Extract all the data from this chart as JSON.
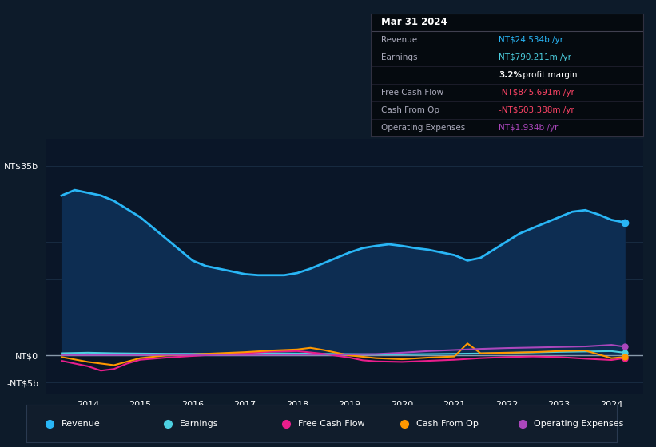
{
  "background_color": "#0d1b2a",
  "plot_bg_color": "#0a1628",
  "ylim": [
    -7,
    40
  ],
  "xlim": [
    2013.2,
    2024.6
  ],
  "revenue": {
    "x": [
      2013.5,
      2013.75,
      2014.0,
      2014.25,
      2014.5,
      2014.75,
      2015.0,
      2015.25,
      2015.5,
      2015.75,
      2016.0,
      2016.25,
      2016.5,
      2016.75,
      2017.0,
      2017.25,
      2017.5,
      2017.75,
      2018.0,
      2018.25,
      2018.5,
      2018.75,
      2019.0,
      2019.25,
      2019.5,
      2019.75,
      2020.0,
      2020.25,
      2020.5,
      2020.75,
      2021.0,
      2021.25,
      2021.5,
      2021.75,
      2022.0,
      2022.25,
      2022.5,
      2022.75,
      2023.0,
      2023.25,
      2023.5,
      2023.75,
      2024.0,
      2024.25
    ],
    "y": [
      29.5,
      30.5,
      30.0,
      29.5,
      28.5,
      27.0,
      25.5,
      23.5,
      21.5,
      19.5,
      17.5,
      16.5,
      16.0,
      15.5,
      15.0,
      14.8,
      14.8,
      14.8,
      15.2,
      16.0,
      17.0,
      18.0,
      19.0,
      19.8,
      20.2,
      20.5,
      20.2,
      19.8,
      19.5,
      19.0,
      18.5,
      17.5,
      18.0,
      19.5,
      21.0,
      22.5,
      23.5,
      24.5,
      25.5,
      26.5,
      26.8,
      26.0,
      25.0,
      24.534
    ],
    "color": "#29b6f6",
    "fill_color": "#0d2d52",
    "linewidth": 2.0
  },
  "earnings": {
    "x": [
      2013.5,
      2014.0,
      2014.5,
      2015.0,
      2015.5,
      2016.0,
      2016.5,
      2017.0,
      2017.5,
      2018.0,
      2018.5,
      2019.0,
      2019.5,
      2020.0,
      2020.5,
      2021.0,
      2021.5,
      2022.0,
      2022.5,
      2023.0,
      2023.5,
      2024.0,
      2024.25
    ],
    "y": [
      0.4,
      0.5,
      0.4,
      0.35,
      0.3,
      0.3,
      0.3,
      0.35,
      0.4,
      0.35,
      0.3,
      0.25,
      0.2,
      0.2,
      0.25,
      0.3,
      0.35,
      0.45,
      0.55,
      0.65,
      0.72,
      0.79,
      0.5
    ],
    "color": "#4dd0e1",
    "linewidth": 1.5
  },
  "free_cash_flow": {
    "x": [
      2013.5,
      2014.0,
      2014.25,
      2014.5,
      2014.75,
      2015.0,
      2015.5,
      2016.0,
      2016.5,
      2017.0,
      2017.5,
      2018.0,
      2018.5,
      2019.0,
      2019.25,
      2019.5,
      2020.0,
      2020.5,
      2021.0,
      2021.5,
      2022.0,
      2022.5,
      2023.0,
      2023.5,
      2024.0,
      2024.25
    ],
    "y": [
      -1.0,
      -2.0,
      -2.8,
      -2.5,
      -1.5,
      -0.8,
      -0.4,
      -0.1,
      0.2,
      0.4,
      0.7,
      0.8,
      0.3,
      -0.4,
      -0.9,
      -1.1,
      -1.2,
      -1.0,
      -0.8,
      -0.5,
      -0.3,
      -0.2,
      -0.3,
      -0.6,
      -0.845,
      -0.5
    ],
    "color": "#e91e8c",
    "linewidth": 1.5
  },
  "cash_from_op": {
    "x": [
      2013.5,
      2014.0,
      2014.5,
      2015.0,
      2015.5,
      2016.0,
      2016.5,
      2017.0,
      2017.5,
      2018.0,
      2018.25,
      2018.5,
      2018.75,
      2019.0,
      2019.5,
      2020.0,
      2020.5,
      2021.0,
      2021.25,
      2021.5,
      2022.0,
      2022.5,
      2023.0,
      2023.5,
      2024.0,
      2024.25
    ],
    "y": [
      -0.3,
      -1.2,
      -1.8,
      -0.5,
      0.0,
      0.2,
      0.4,
      0.6,
      0.9,
      1.1,
      1.4,
      1.0,
      0.5,
      0.0,
      -0.5,
      -0.7,
      -0.4,
      -0.2,
      2.2,
      0.4,
      0.5,
      0.6,
      0.8,
      0.9,
      -0.503,
      -0.3
    ],
    "color": "#ff9800",
    "linewidth": 1.5
  },
  "operating_expenses": {
    "x": [
      2013.5,
      2014.0,
      2015.0,
      2016.0,
      2017.0,
      2018.0,
      2019.0,
      2019.5,
      2020.0,
      2020.5,
      2021.0,
      2021.5,
      2022.0,
      2022.5,
      2023.0,
      2023.5,
      2024.0,
      2024.25
    ],
    "y": [
      0.1,
      0.1,
      0.1,
      0.1,
      0.1,
      0.15,
      0.2,
      0.25,
      0.5,
      0.8,
      1.0,
      1.2,
      1.35,
      1.45,
      1.55,
      1.65,
      1.934,
      1.6
    ],
    "color": "#ab47bc",
    "linewidth": 1.5
  },
  "zero_line_color": "#8899aa",
  "grid_color": "#1a2e45",
  "grid_lines_y": [
    35,
    28,
    21,
    14,
    7,
    0,
    -5
  ],
  "ytick_positions": [
    35,
    0,
    -5
  ],
  "ytick_labels": [
    "NT$35b",
    "NT$0",
    "-NT$5b"
  ],
  "xtick_positions": [
    2014,
    2015,
    2016,
    2017,
    2018,
    2019,
    2020,
    2021,
    2022,
    2023,
    2024
  ],
  "xtick_labels": [
    "2014",
    "2015",
    "2016",
    "2017",
    "2018",
    "2019",
    "2020",
    "2021",
    "2022",
    "2023",
    "2024"
  ],
  "tooltip": {
    "title": "Mar 31 2024",
    "rows": [
      {
        "label": "Revenue",
        "value": "NT$24.534b /yr",
        "value_color": "#29b6f6"
      },
      {
        "label": "Earnings",
        "value": "NT$790.211m /yr",
        "value_color": "#4dd0e1"
      },
      {
        "label": "",
        "value": "3.2% profit margin",
        "value_color": "white",
        "bold_prefix": "3.2%"
      },
      {
        "label": "Free Cash Flow",
        "value": "-NT$845.691m /yr",
        "value_color": "#ff4466"
      },
      {
        "label": "Cash From Op",
        "value": "-NT$503.388m /yr",
        "value_color": "#ff4466"
      },
      {
        "label": "Operating Expenses",
        "value": "NT$1.934b /yr",
        "value_color": "#ab47bc"
      }
    ]
  },
  "legend_items": [
    {
      "label": "Revenue",
      "color": "#29b6f6"
    },
    {
      "label": "Earnings",
      "color": "#4dd0e1"
    },
    {
      "label": "Free Cash Flow",
      "color": "#e91e8c"
    },
    {
      "label": "Cash From Op",
      "color": "#ff9800"
    },
    {
      "label": "Operating Expenses",
      "color": "#ab47bc"
    }
  ]
}
